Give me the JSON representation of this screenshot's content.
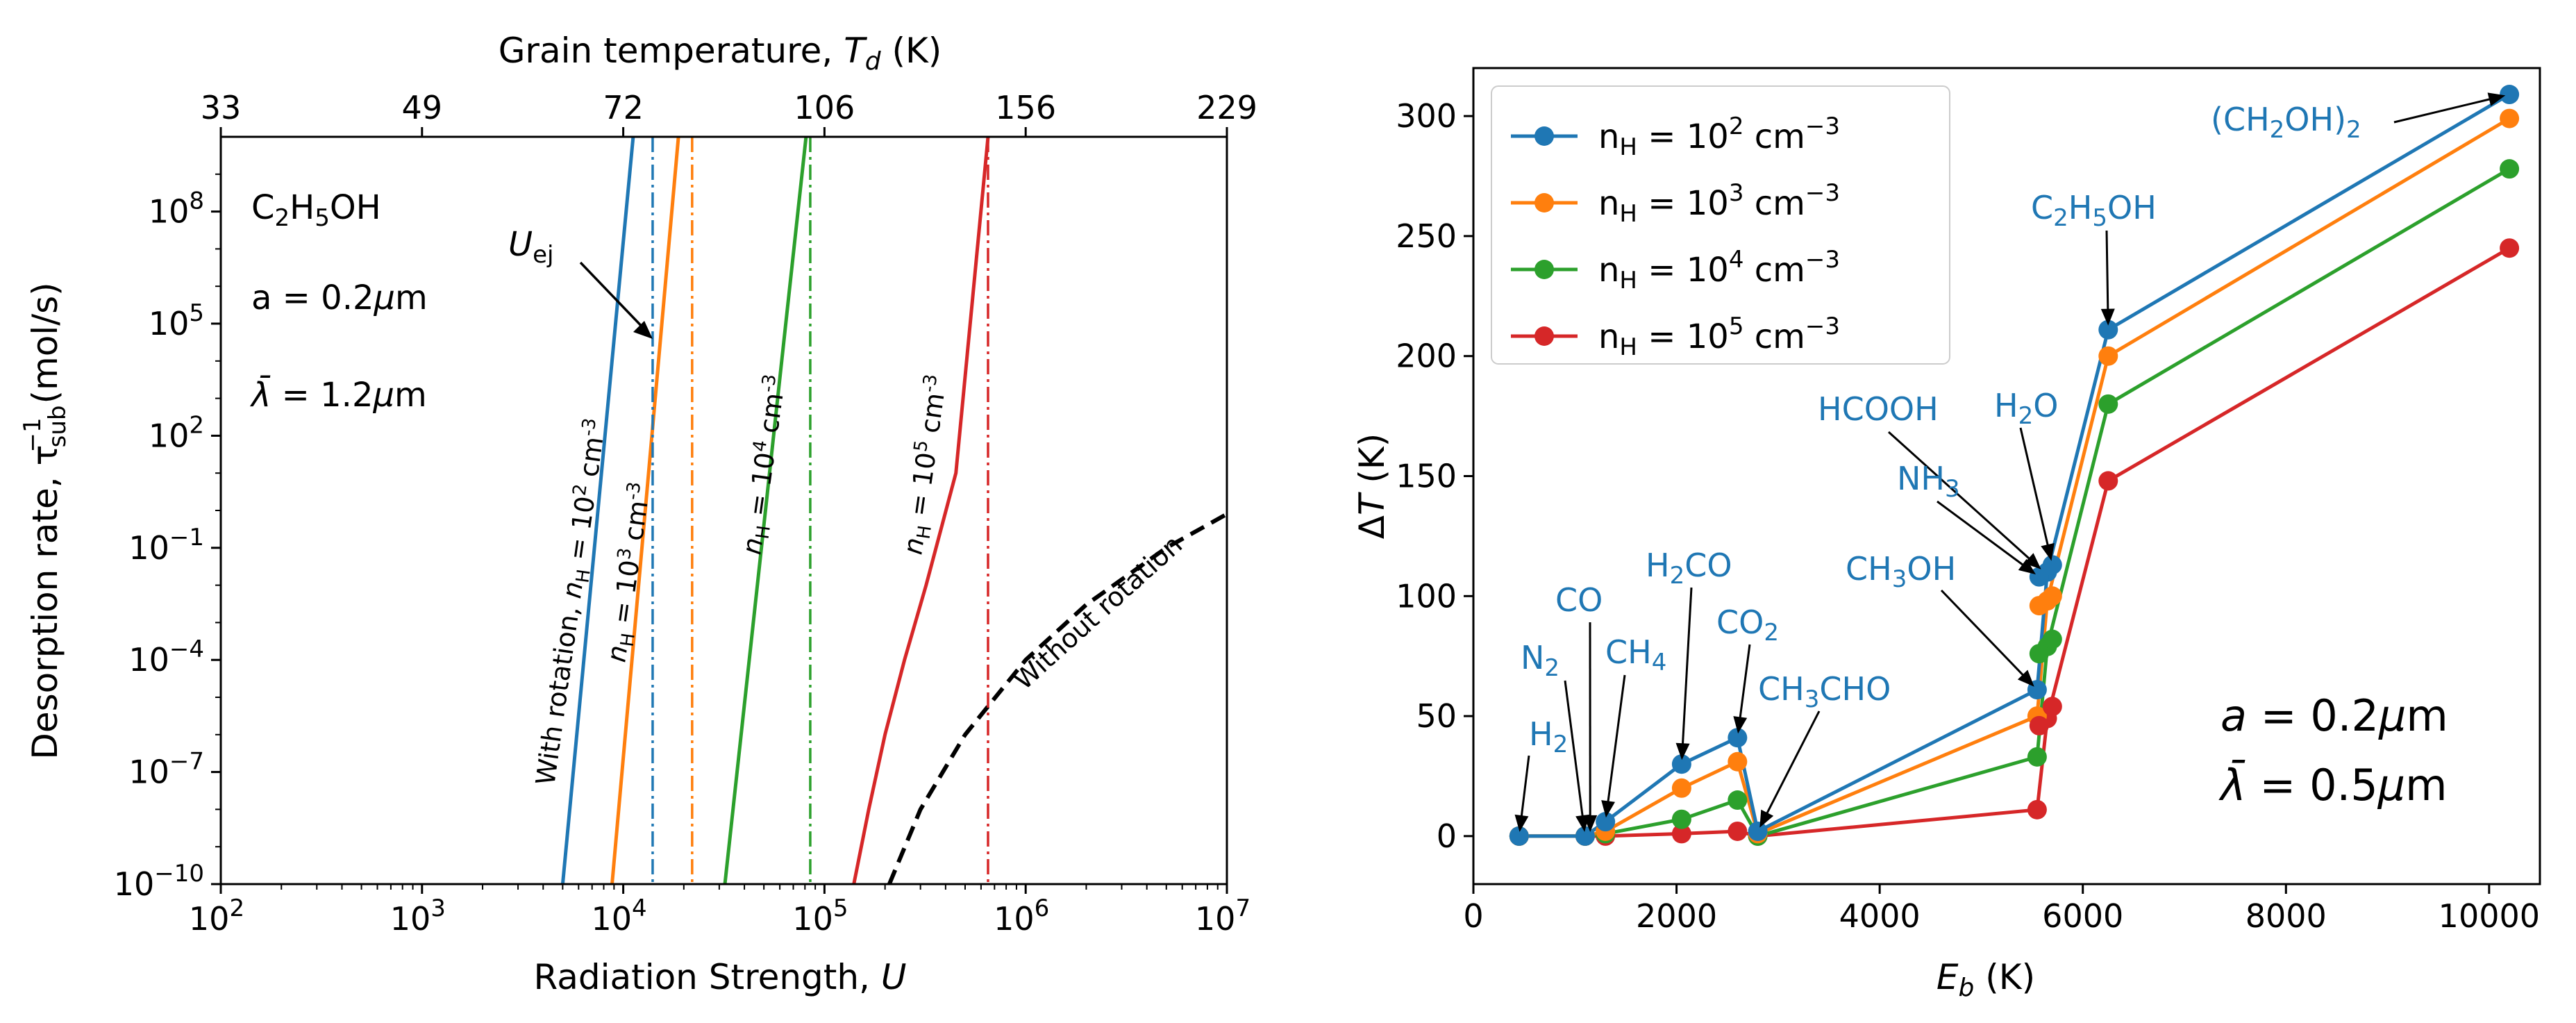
{
  "chart_data": [
    {
      "type": "line",
      "title": "",
      "xlabel": "Radiation Strength, U",
      "xlabel_parts": [
        "Radiation Strength, ",
        "U"
      ],
      "ylabel": "Desorption rate, τsub−1 (mol/s)",
      "ylabel_parts": [
        "Desorption rate, τ",
        "sub",
        "−1",
        " (mol/s)"
      ],
      "xscale": "log",
      "yscale": "log",
      "xlim": [
        100,
        10000000
      ],
      "ylim": [
        1e-10,
        10000000000.0
      ],
      "x_ticks": [
        {
          "value": 100,
          "base": "10",
          "exp": "2"
        },
        {
          "value": 1000,
          "base": "10",
          "exp": "3"
        },
        {
          "value": 10000,
          "base": "10",
          "exp": "4"
        },
        {
          "value": 100000,
          "base": "10",
          "exp": "5"
        },
        {
          "value": 1000000,
          "base": "10",
          "exp": "6"
        },
        {
          "value": 10000000,
          "base": "10",
          "exp": "7"
        }
      ],
      "y_ticks": [
        {
          "value": 1e-10,
          "base": "10",
          "exp": "−10"
        },
        {
          "value": 1e-07,
          "base": "10",
          "exp": "−7"
        },
        {
          "value": 0.0001,
          "base": "10",
          "exp": "−4"
        },
        {
          "value": 0.1,
          "base": "10",
          "exp": "−1"
        },
        {
          "value": 100,
          "base": "10",
          "exp": "2"
        },
        {
          "value": 100000,
          "base": "10",
          "exp": "5"
        },
        {
          "value": 100000000,
          "base": "10",
          "exp": "8"
        }
      ],
      "top_axis": {
        "label": "Grain temperature, Td (K)",
        "label_parts": [
          "Grain temperature, ",
          "T",
          "d",
          " (K)"
        ],
        "ticks": [
          {
            "u": 100,
            "label": "33"
          },
          {
            "u": 1000,
            "label": "49"
          },
          {
            "u": 10000,
            "label": "72"
          },
          {
            "u": 100000,
            "label": "106"
          },
          {
            "u": 1000000,
            "label": "156"
          },
          {
            "u": 10000000,
            "label": "229"
          }
        ]
      },
      "series": [
        {
          "name": "With rotation, nH = 10^2 cm^-3",
          "color": "#1f77b4",
          "dash": "solid",
          "x": [
            5000,
            11200
          ],
          "y": [
            1e-10,
            10000000000.0
          ]
        },
        {
          "name": "nH = 10^3 cm^-3",
          "color": "#ff7f0e",
          "dash": "solid",
          "x": [
            8800,
            18800
          ],
          "y": [
            1e-10,
            10000000000.0
          ]
        },
        {
          "name": "nH = 10^4 cm^-3",
          "color": "#2ca02c",
          "dash": "solid",
          "x": [
            32000,
            81000
          ],
          "y": [
            1e-10,
            10000000000.0
          ]
        },
        {
          "name": "nH = 10^5 cm^-3",
          "color": "#d62728",
          "dash": "solid",
          "x": [
            140000,
            166000,
            200000,
            250000,
            320000,
            450000,
            650000
          ],
          "y": [
            1e-10,
            1e-08,
            1e-06,
            0.0001,
            0.01,
            10,
            10000000000
          ]
        },
        {
          "name": "Without rotation",
          "color": "#000000",
          "dash": "dashed",
          "x": [
            210000,
            300000,
            500000,
            1000000,
            2000000,
            5000000,
            10000000
          ],
          "y": [
            1e-10,
            1e-08,
            1e-06,
            0.0001,
            0.003,
            0.1,
            0.8
          ]
        }
      ],
      "vlines": [
        {
          "x": 14000,
          "color": "#1f77b4"
        },
        {
          "x": 22000,
          "color": "#ff7f0e"
        },
        {
          "x": 85000,
          "color": "#2ca02c"
        },
        {
          "x": 650000,
          "color": "#d62728"
        }
      ],
      "annotations": {
        "molecule_pre": "C",
        "molecule_s1": "2",
        "molecule_mid": "H",
        "molecule_s2": "5",
        "molecule_post": "OH",
        "size": "a = 0.2μm",
        "size_parts": [
          "a = 0.2",
          "μ",
          "m"
        ],
        "wavelength": "λ̄ = 1.2μm",
        "wavelength_parts": [
          "λ̄",
          " = 1.2",
          "μ",
          "m"
        ],
        "uej": "Uej",
        "uej_parts": [
          "U",
          "ej"
        ],
        "curve_labels": [
          {
            "parts": [
              "With rotation, ",
              "n",
              "H",
              " = 10",
              "2",
              " cm",
              "-3"
            ]
          },
          {
            "parts": [
              "n",
              "H",
              " = 10",
              "3",
              " cm",
              "-3"
            ]
          },
          {
            "parts": [
              "n",
              "H",
              " = 10",
              "4",
              " cm",
              "-3"
            ]
          },
          {
            "parts": [
              "n",
              "H",
              " = 10",
              "5",
              " cm",
              "-3"
            ]
          },
          {
            "parts": [
              "Without rotation"
            ]
          }
        ]
      }
    },
    {
      "type": "line",
      "title": "",
      "xlabel": "Eb (K)",
      "xlabel_parts": [
        "E",
        "b",
        " (K)"
      ],
      "ylabel": "ΔT (K)",
      "ylabel_parts": [
        "Δ",
        "T",
        " (K)"
      ],
      "xlim": [
        0,
        10500
      ],
      "ylim": [
        -20,
        320
      ],
      "x_ticks": [
        0,
        2000,
        4000,
        6000,
        8000,
        10000
      ],
      "y_ticks": [
        0,
        50,
        100,
        150,
        200,
        250,
        300
      ],
      "x": [
        450,
        1100,
        1300,
        2050,
        2600,
        2800,
        5550,
        5650,
        6250,
        10200
      ],
      "series": [
        {
          "name": "nH = 10^2 cm^-3",
          "label_parts": [
            "n",
            "H",
            " = 10",
            "2",
            " cm",
            "−3"
          ],
          "color": "#1f77b4",
          "values": [
            0,
            0,
            6,
            30,
            41,
            2,
            61,
            110,
            211,
            309
          ]
        },
        {
          "name": "nH = 10^3 cm^-3",
          "label_parts": [
            "n",
            "H",
            " = 10",
            "3",
            " cm",
            "−3"
          ],
          "color": "#ff7f0e",
          "values": [
            0,
            0,
            2,
            20,
            31,
            1,
            50,
            98,
            200,
            299
          ]
        },
        {
          "name": "nH = 10^4 cm^-3",
          "label_parts": [
            "n",
            "H",
            " = 10",
            "4",
            " cm",
            "−3"
          ],
          "color": "#2ca02c",
          "values": [
            0,
            0,
            1,
            7,
            15,
            0,
            33,
            79,
            180,
            278
          ]
        },
        {
          "name": "nH = 10^5 cm^-3",
          "label_parts": [
            "n",
            "H",
            " = 10",
            "5",
            " cm",
            "−3"
          ],
          "color": "#d62728",
          "values": [
            0,
            0,
            0,
            1,
            2,
            0,
            11,
            49,
            148,
            245
          ]
        }
      ],
      "extra_points": [
        {
          "series": 0,
          "x": 5700,
          "y": 113
        },
        {
          "series": 1,
          "x": 5700,
          "y": 100
        },
        {
          "series": 2,
          "x": 5700,
          "y": 82
        },
        {
          "series": 3,
          "x": 5700,
          "y": 54
        },
        {
          "series": 0,
          "x": 5570,
          "y": 108
        },
        {
          "series": 1,
          "x": 5570,
          "y": 96
        },
        {
          "series": 2,
          "x": 5570,
          "y": 76
        },
        {
          "series": 3,
          "x": 5570,
          "y": 46
        }
      ],
      "molecule_labels": [
        {
          "name": "H2",
          "parts": [
            [
              "H",
              0
            ],
            [
              "2",
              1
            ]
          ],
          "target": [
            450,
            0
          ]
        },
        {
          "name": "N2",
          "parts": [
            [
              "N",
              0
            ],
            [
              "2",
              1
            ]
          ],
          "target": [
            1100,
            0
          ]
        },
        {
          "name": "CO",
          "parts": [
            [
              "CO",
              0
            ]
          ],
          "target": [
            1150,
            0
          ]
        },
        {
          "name": "CH4",
          "parts": [
            [
              "CH",
              0
            ],
            [
              "4",
              1
            ]
          ],
          "target": [
            1300,
            6
          ]
        },
        {
          "name": "H2CO",
          "parts": [
            [
              "H",
              0
            ],
            [
              "2",
              1
            ],
            [
              "CO",
              0
            ]
          ],
          "target": [
            2050,
            30
          ]
        },
        {
          "name": "CO2",
          "parts": [
            [
              "CO",
              0
            ],
            [
              "2",
              1
            ]
          ],
          "target": [
            2600,
            41
          ]
        },
        {
          "name": "CH3CHO",
          "parts": [
            [
              "CH",
              0
            ],
            [
              "3",
              1
            ],
            [
              "CHO",
              0
            ]
          ],
          "target": [
            2800,
            2
          ]
        },
        {
          "name": "CH3OH",
          "parts": [
            [
              "CH",
              0
            ],
            [
              "3",
              1
            ],
            [
              "OH",
              0
            ]
          ],
          "target": [
            5550,
            61
          ]
        },
        {
          "name": "NH3",
          "parts": [
            [
              "NH",
              0
            ],
            [
              "3",
              1
            ]
          ],
          "target": [
            5570,
            108
          ]
        },
        {
          "name": "HCOOH",
          "parts": [
            [
              "HCOOH",
              0
            ]
          ],
          "target": [
            5620,
            110
          ]
        },
        {
          "name": "H2O",
          "parts": [
            [
              "H",
              0
            ],
            [
              "2",
              1
            ],
            [
              "O",
              0
            ]
          ],
          "target": [
            5700,
            113
          ]
        },
        {
          "name": "C2H5OH",
          "parts": [
            [
              "C",
              0
            ],
            [
              "2",
              1
            ],
            [
              "H",
              0
            ],
            [
              "5",
              1
            ],
            [
              "OH",
              0
            ]
          ],
          "target": [
            6250,
            211
          ]
        },
        {
          "name": "(CH2OH)2",
          "parts": [
            [
              "(CH",
              0
            ],
            [
              "2",
              1
            ],
            [
              "OH)",
              0
            ],
            [
              "2",
              1
            ]
          ],
          "target": [
            10200,
            309
          ]
        }
      ],
      "annotations": {
        "size": "a = 0.2μm",
        "size_parts": [
          "a",
          " = 0.2",
          "μ",
          "m"
        ],
        "wavelength": "λ̄ = 0.5μm",
        "wavelength_parts": [
          "λ̄",
          " = 0.5",
          "μ",
          "m"
        ]
      },
      "legend": "top-left"
    }
  ]
}
